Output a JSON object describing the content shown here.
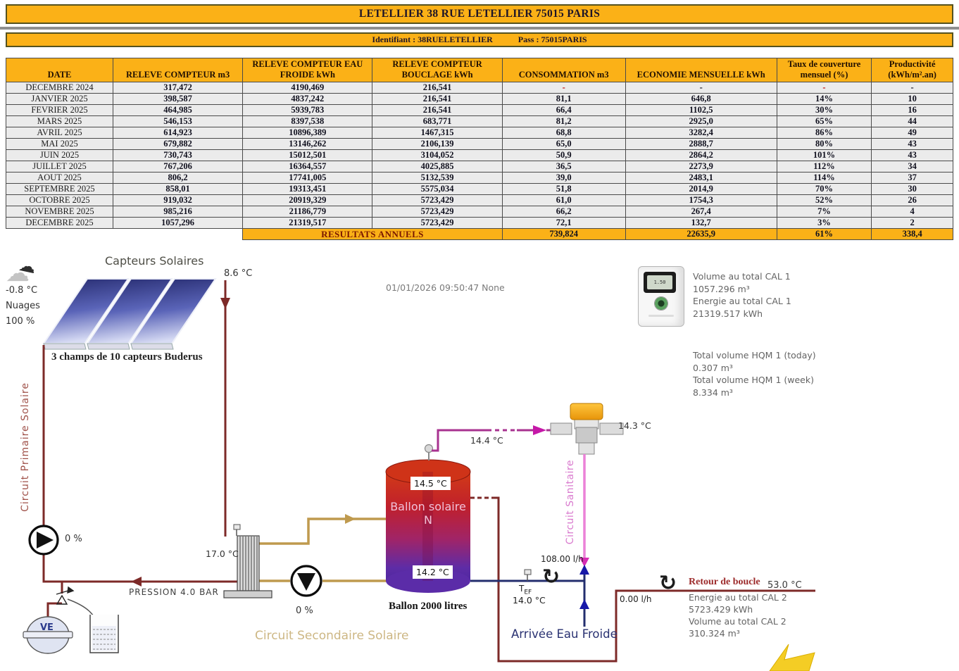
{
  "header": {
    "title": "LETELLIER 38 RUE LETELLIER 75015 PARIS",
    "identifiant": "Identifiant : 38RUELETELLIER",
    "pass": "Pass : 75015PARIS"
  },
  "table": {
    "columns": [
      "DATE",
      "RELEVE COMPTEUR m3",
      "RELEVE COMPTEUR EAU FROIDE kWh",
      "RELEVE COMPTEUR BOUCLAGE kWh",
      "CONSOMMATION m3",
      "ECONOMIE MENSUELLE kWh",
      "Taux de couverture mensuel (%)",
      "Productivité (kWh/m².an)"
    ],
    "rows": [
      [
        "DECEMBRE 2024",
        "317,472",
        "4190,469",
        "216,541",
        "-",
        "-",
        "-",
        "-"
      ],
      [
        "JANVIER 2025",
        "398,587",
        "4837,242",
        "216,541",
        "81,1",
        "646,8",
        "14%",
        "10"
      ],
      [
        "FEVRIER 2025",
        "464,985",
        "5939,783",
        "216,541",
        "66,4",
        "1102,5",
        "30%",
        "16"
      ],
      [
        "MARS 2025",
        "546,153",
        "8397,538",
        "683,771",
        "81,2",
        "2925,0",
        "65%",
        "44"
      ],
      [
        "AVRIL 2025",
        "614,923",
        "10896,389",
        "1467,315",
        "68,8",
        "3282,4",
        "86%",
        "49"
      ],
      [
        "MAI 2025",
        "679,882",
        "13146,262",
        "2106,139",
        "65,0",
        "2888,7",
        "80%",
        "43"
      ],
      [
        "JUIN 2025",
        "730,743",
        "15012,501",
        "3104,052",
        "50,9",
        "2864,2",
        "101%",
        "43"
      ],
      [
        "JUILLET 2025",
        "767,206",
        "16364,557",
        "4025,885",
        "36,5",
        "2273,9",
        "112%",
        "34"
      ],
      [
        "AOUT 2025",
        "806,2",
        "17741,005",
        "5132,539",
        "39,0",
        "2483,1",
        "114%",
        "37"
      ],
      [
        "SEPTEMBRE 2025",
        "858,01",
        "19313,451",
        "5575,034",
        "51,8",
        "2014,9",
        "70%",
        "30"
      ],
      [
        "OCTOBRE 2025",
        "919,032",
        "20919,329",
        "5723,429",
        "61,0",
        "1754,3",
        "52%",
        "26"
      ],
      [
        "NOVEMBRE 2025",
        "985,216",
        "21186,779",
        "5723,429",
        "66,2",
        "267,4",
        "7%",
        "4"
      ],
      [
        "DECEMBRE 2025",
        "1057,296",
        "21319,517",
        "5723,429",
        "72,1",
        "132,7",
        "3%",
        "2"
      ]
    ],
    "red_dash_columns": [
      4,
      6
    ],
    "results": {
      "label": "RESULTATS ANNUELS",
      "values": [
        "739,824",
        "22635,9",
        "61%",
        "338,4"
      ]
    }
  },
  "diagram": {
    "weather": {
      "temp": "-0.8 °C",
      "condition": "Nuages",
      "humidity": "100 %"
    },
    "capteurs_title": "Capteurs Solaires",
    "capteurs_temp": "8.6 °C",
    "capteurs_caption": "3 champs de 10 capteurs Buderus",
    "timestamp": "01/01/2026 09:50:47 None",
    "cal1": [
      "Volume au total CAL 1",
      "1057.296 m³",
      "Energie au total CAL 1",
      "21319.517 kWh"
    ],
    "hqm": [
      "Total volume HQM 1 (today)",
      "0.307 m³",
      "Total volume HQM 1 (week)",
      "8.334 m³"
    ],
    "circuit_primaire": "Circuit Primaire Solaire",
    "pump1_pct": "0 %",
    "pression": "PRESSION 4.0 BAR",
    "exchanger_temp": "17.0 °C",
    "pump2_pct": "0 %",
    "circuit_secondaire": "Circuit Secondaire Solaire",
    "ve_label": "VE",
    "tank_temp_top": "14.5 °C",
    "tank_name_line1": "Ballon solaire",
    "tank_name_line2": "N",
    "tank_temp_bottom": "14.2 °C",
    "tank_caption": "Ballon 2000 litres",
    "pipe_temp": "14.4 °C",
    "valve_temp": "14.3 °C",
    "circuit_sanitaire": "Circuit Sanitaire",
    "sanitaire_flow": "108.00 l/h",
    "tef_label": "T",
    "tef_sub": "EF",
    "tef_temp": "14.0 °C",
    "arrivee_eau_froide": "Arrivée Eau Froide",
    "retour_flow": "0.00 l/h",
    "retour_label": "Retour de boucle",
    "retour_temp": "53.0 °C",
    "cal2": [
      "Energie au total CAL 2",
      "5723.429 kWh",
      "Volume au total CAL 2",
      "310.324 m³"
    ],
    "icons": {
      "cloud_light": "☁",
      "cloud_dark": "☁",
      "circulation": "↻"
    }
  },
  "colors": {
    "accent_orange": "#FBB117",
    "pipe_primary": "#7d2a28",
    "pipe_secondary": "#bf9a4e",
    "pipe_sanitary_pink": "#ec82d8",
    "pipe_magenta": "#a83290",
    "pipe_cold_blue": "#232e6e",
    "red_dash": "#c00000"
  }
}
